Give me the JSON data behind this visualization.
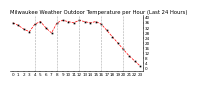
{
  "title": "Milwaukee Weather Outdoor Temperature per Hour (Last 24 Hours)",
  "hours": [
    0,
    1,
    2,
    3,
    4,
    5,
    6,
    7,
    8,
    9,
    10,
    11,
    12,
    13,
    14,
    15,
    16,
    17,
    18,
    19,
    20,
    21,
    22,
    23
  ],
  "temps": [
    36,
    34,
    31,
    29,
    35,
    37,
    32,
    28,
    36,
    38,
    37,
    36,
    38,
    37,
    36,
    37,
    35,
    30,
    25,
    20,
    15,
    10,
    6,
    2
  ],
  "line_color": "#ff0000",
  "marker_color": "#000000",
  "bg_color": "#ffffff",
  "plot_bg": "#ffffff",
  "ylim_min": -2,
  "ylim_max": 42,
  "yticks": [
    0,
    4,
    8,
    12,
    16,
    20,
    24,
    28,
    32,
    36,
    40
  ],
  "grid_color": "#aaaaaa",
  "xlabel_fontsize": 3.0,
  "ylabel_fontsize": 3.0,
  "title_fontsize": 3.8,
  "vgrid_every": 4
}
